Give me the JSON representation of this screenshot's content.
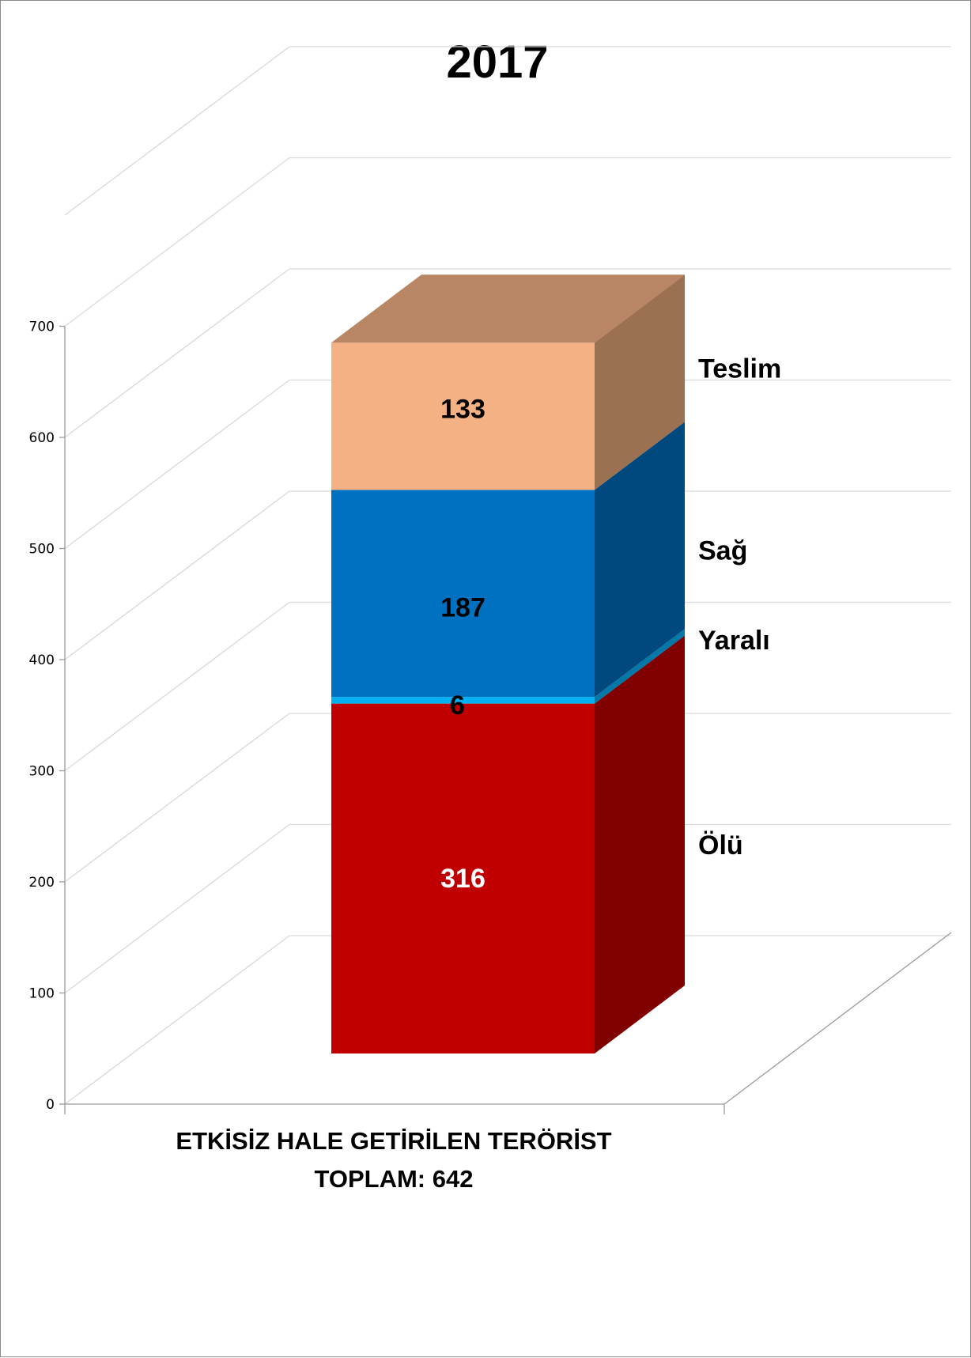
{
  "chart_data": {
    "type": "bar",
    "stacked": true,
    "three_d": true,
    "title": "2017",
    "categories": [
      "ETKİSİZ HALE GETİRİLEN TERÖRİST"
    ],
    "category_caption": [
      "ETKİSİZ HALE GETİRİLEN TERÖRİST",
      "TOPLAM: 642"
    ],
    "ylim": [
      0,
      700
    ],
    "yticks": [
      0,
      100,
      200,
      300,
      400,
      500,
      600,
      700
    ],
    "grid": true,
    "legend_placement": "right",
    "series": [
      {
        "name": "Ölü",
        "values": [
          316
        ],
        "label": "316",
        "colors": {
          "front": "#c00000",
          "side": "#800000",
          "top": "#a02020"
        },
        "label_color": "#ffffff"
      },
      {
        "name": "Yaralı",
        "values": [
          6
        ],
        "label": "6",
        "colors": {
          "front": "#00b0f0",
          "side": "#0078a8",
          "top": "#30c0f0"
        },
        "label_color": "#000000"
      },
      {
        "name": "Sağ",
        "values": [
          187
        ],
        "label": "187",
        "colors": {
          "front": "#0070c0",
          "side": "#00497e",
          "top": "#2f7fc4"
        },
        "label_color": "#000000"
      },
      {
        "name": "Teslim",
        "values": [
          133
        ],
        "label": "133",
        "colors": {
          "front": "#f4b183",
          "side": "#9c7152",
          "top": "#b88565"
        },
        "label_color": "#000000"
      }
    ]
  }
}
